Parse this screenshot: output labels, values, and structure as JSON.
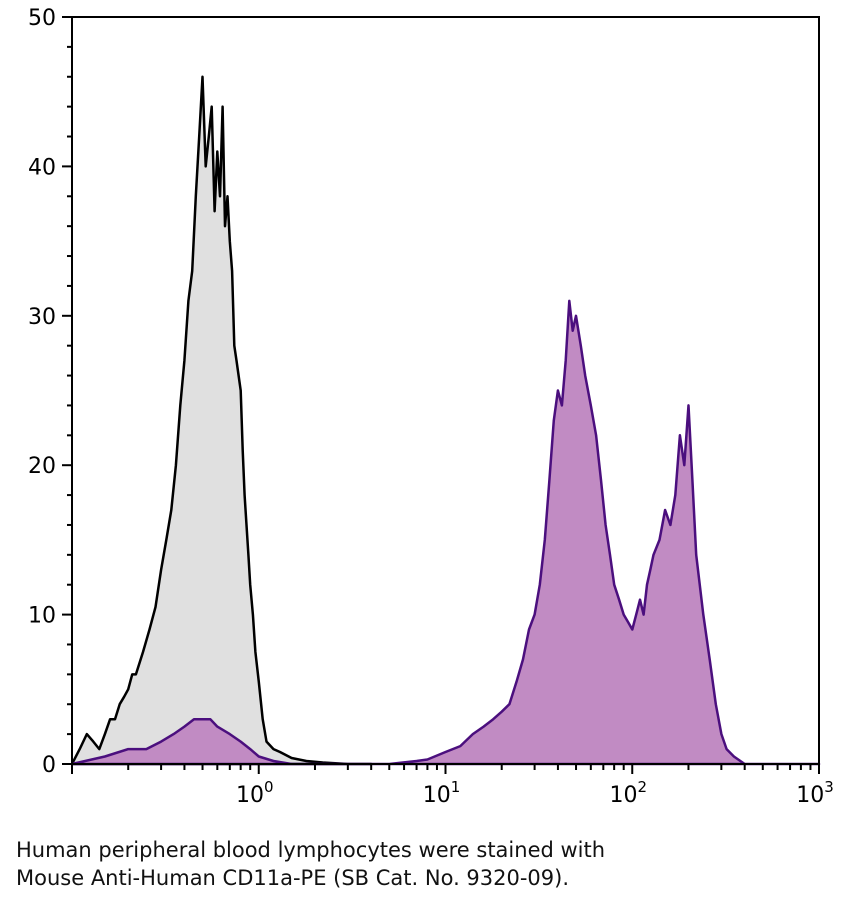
{
  "chart_data": {
    "type": "area",
    "title": "",
    "xlabel": "",
    "ylabel": "",
    "x_scale": "log",
    "xlim": [
      0.1,
      1000
    ],
    "ylim": [
      0,
      50
    ],
    "grid": false,
    "legend": "none",
    "y_ticks": [
      "0",
      "10",
      "20",
      "30",
      "40",
      "50"
    ],
    "x_ticks": [
      {
        "value": 1,
        "base": "10",
        "exp": "0"
      },
      {
        "value": 10,
        "base": "10",
        "exp": "1"
      },
      {
        "value": 100,
        "base": "10",
        "exp": "2"
      },
      {
        "value": 1000,
        "base": "10",
        "exp": "3"
      }
    ],
    "series": [
      {
        "line_color": "#000000",
        "fill_color": "#e0e0e0",
        "points": [
          [
            0.1,
            0
          ],
          [
            0.11,
            1
          ],
          [
            0.12,
            2
          ],
          [
            0.13,
            1.5
          ],
          [
            0.14,
            1
          ],
          [
            0.15,
            2
          ],
          [
            0.16,
            3
          ],
          [
            0.17,
            3
          ],
          [
            0.18,
            4
          ],
          [
            0.19,
            4.5
          ],
          [
            0.2,
            5
          ],
          [
            0.21,
            6
          ],
          [
            0.22,
            6
          ],
          [
            0.24,
            7.5
          ],
          [
            0.26,
            9
          ],
          [
            0.28,
            10.5
          ],
          [
            0.3,
            13
          ],
          [
            0.32,
            15
          ],
          [
            0.34,
            17
          ],
          [
            0.36,
            20
          ],
          [
            0.38,
            24
          ],
          [
            0.4,
            27
          ],
          [
            0.42,
            31
          ],
          [
            0.44,
            33
          ],
          [
            0.46,
            38
          ],
          [
            0.48,
            42
          ],
          [
            0.5,
            46
          ],
          [
            0.52,
            40
          ],
          [
            0.54,
            42
          ],
          [
            0.56,
            44
          ],
          [
            0.58,
            37
          ],
          [
            0.6,
            41
          ],
          [
            0.62,
            38
          ],
          [
            0.64,
            44
          ],
          [
            0.66,
            36
          ],
          [
            0.68,
            38
          ],
          [
            0.7,
            35
          ],
          [
            0.72,
            33
          ],
          [
            0.74,
            28
          ],
          [
            0.76,
            27
          ],
          [
            0.78,
            26
          ],
          [
            0.8,
            25
          ],
          [
            0.82,
            21
          ],
          [
            0.84,
            18
          ],
          [
            0.86,
            16
          ],
          [
            0.88,
            14
          ],
          [
            0.9,
            12
          ],
          [
            0.93,
            10
          ],
          [
            0.96,
            7.5
          ],
          [
            1.0,
            5.5
          ],
          [
            1.05,
            3
          ],
          [
            1.1,
            1.5
          ],
          [
            1.2,
            1
          ],
          [
            1.3,
            0.8
          ],
          [
            1.5,
            0.4
          ],
          [
            1.8,
            0.2
          ],
          [
            2.2,
            0.1
          ],
          [
            3.0,
            0
          ],
          [
            4.0,
            0
          ]
        ]
      },
      {
        "line_color": "#4b0f7e",
        "fill_color": "#c18bc3",
        "points": [
          [
            0.1,
            0
          ],
          [
            0.15,
            0.5
          ],
          [
            0.2,
            1
          ],
          [
            0.25,
            1
          ],
          [
            0.3,
            1.5
          ],
          [
            0.35,
            2
          ],
          [
            0.4,
            2.5
          ],
          [
            0.45,
            3
          ],
          [
            0.5,
            3
          ],
          [
            0.55,
            3
          ],
          [
            0.6,
            2.5
          ],
          [
            0.7,
            2
          ],
          [
            0.8,
            1.5
          ],
          [
            0.9,
            1
          ],
          [
            1.0,
            0.5
          ],
          [
            1.2,
            0.2
          ],
          [
            1.5,
            0
          ],
          [
            3.0,
            0
          ],
          [
            5.0,
            0
          ],
          [
            7.0,
            0.2
          ],
          [
            8.0,
            0.3
          ],
          [
            10.0,
            0.8
          ],
          [
            12.0,
            1.2
          ],
          [
            14.0,
            2
          ],
          [
            16.0,
            2.5
          ],
          [
            18.0,
            3
          ],
          [
            20.0,
            3.5
          ],
          [
            22.0,
            4
          ],
          [
            24.0,
            5.5
          ],
          [
            26.0,
            7
          ],
          [
            28.0,
            9
          ],
          [
            30.0,
            10
          ],
          [
            32.0,
            12
          ],
          [
            34.0,
            15
          ],
          [
            36.0,
            19
          ],
          [
            38.0,
            23
          ],
          [
            40.0,
            25
          ],
          [
            42.0,
            24
          ],
          [
            44.0,
            27
          ],
          [
            46.0,
            31
          ],
          [
            48.0,
            29
          ],
          [
            50.0,
            30
          ],
          [
            53.0,
            28
          ],
          [
            56.0,
            26
          ],
          [
            60.0,
            24
          ],
          [
            64.0,
            22
          ],
          [
            68.0,
            19
          ],
          [
            72.0,
            16
          ],
          [
            76.0,
            14
          ],
          [
            80.0,
            12
          ],
          [
            85.0,
            11
          ],
          [
            90.0,
            10
          ],
          [
            95.0,
            9.5
          ],
          [
            100.0,
            9
          ],
          [
            105.0,
            10
          ],
          [
            110.0,
            11
          ],
          [
            115.0,
            10
          ],
          [
            120.0,
            12
          ],
          [
            125.0,
            13
          ],
          [
            130.0,
            14
          ],
          [
            140.0,
            15
          ],
          [
            150.0,
            17
          ],
          [
            160.0,
            16
          ],
          [
            170.0,
            18
          ],
          [
            180.0,
            22
          ],
          [
            190.0,
            20
          ],
          [
            200.0,
            24
          ],
          [
            210.0,
            19
          ],
          [
            220.0,
            14
          ],
          [
            240.0,
            10
          ],
          [
            260.0,
            7
          ],
          [
            280.0,
            4
          ],
          [
            300.0,
            2
          ],
          [
            320.0,
            1
          ],
          [
            350.0,
            0.5
          ],
          [
            400.0,
            0
          ],
          [
            1000.0,
            0
          ]
        ]
      }
    ]
  },
  "caption": {
    "line1": "Human peripheral blood lymphocytes were stained with",
    "line2": "Mouse Anti-Human CD11a-PE (SB Cat. No. 9320-09)."
  }
}
